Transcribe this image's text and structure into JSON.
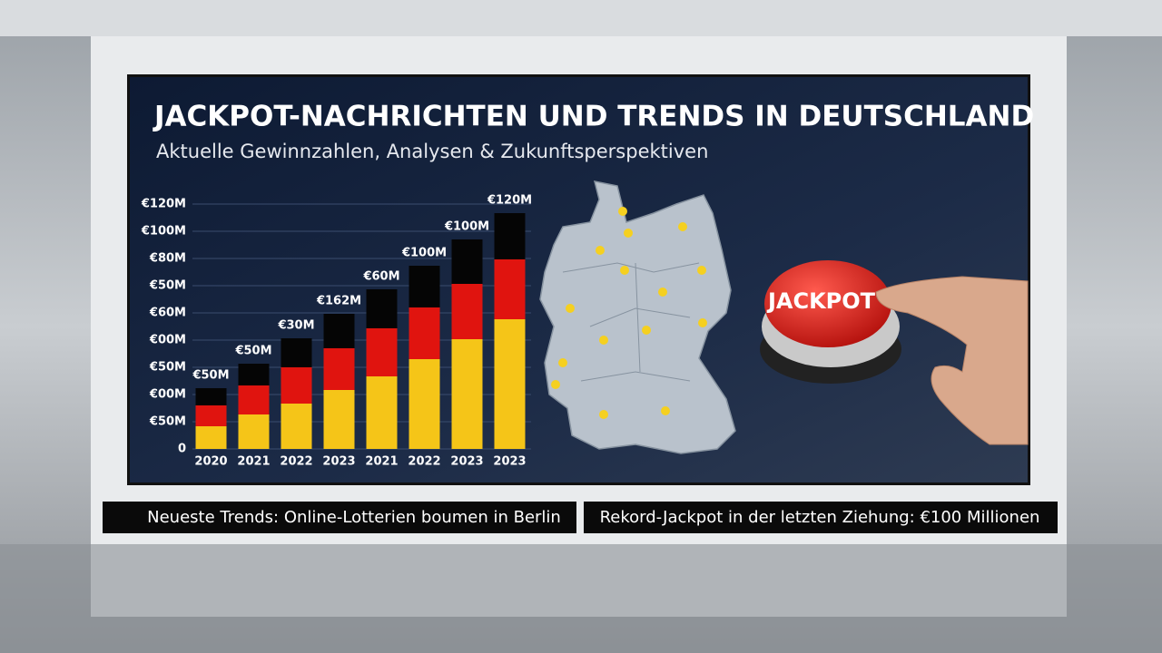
{
  "chart_data": {
    "type": "stacked-bar",
    "title": "JACKPOT-NACHRICHTEN UND TRENDS IN DEUTSCHLAND",
    "subtitle": "Aktuelle Gewinnzahlen, Analysen & Zukunftsperspektiven",
    "categories": [
      "2020",
      "2021",
      "2022",
      "2023",
      "2021",
      "2022",
      "2023",
      "2023"
    ],
    "series": [
      {
        "color": "#f5c518",
        "values": [
          12.5,
          19,
          25,
          32.5,
          40,
          49.5,
          60.5,
          71.5
        ]
      },
      {
        "color": "#e0140f",
        "values": [
          11.5,
          16,
          20,
          23,
          26.5,
          28.5,
          30.5,
          33
        ]
      },
      {
        "color": "#050505",
        "values": [
          9.5,
          12,
          16,
          19,
          21.5,
          23,
          24.5,
          25.5
        ]
      }
    ],
    "annotations": [
      "€50M",
      "€50M",
      "€30M",
      "€162M",
      "€60M",
      "€100M",
      "€100M",
      "€120M"
    ],
    "ylim": [
      0,
      135
    ],
    "yticks": [
      0,
      {
        "value": 15,
        "label": "€50M"
      },
      {
        "value": 30,
        "label": "€00M"
      },
      {
        "value": 45,
        "label": "€50M"
      },
      {
        "value": 60,
        "label": "€00M"
      },
      {
        "value": 75,
        "label": "€60M"
      },
      {
        "value": 90,
        "label": "€50M"
      },
      {
        "value": 105,
        "label": "€80M"
      },
      {
        "value": 120,
        "label": "€100M"
      },
      {
        "value": 135,
        "label": "€120M"
      }
    ],
    "grid": true
  },
  "ticker": [
    "Neueste Trends: Online-Lotterien boumen in Berlin",
    "Rekord-Jackpot in der letzten Ziehung: €100 Millionen"
  ],
  "button": "JACKPOT"
}
